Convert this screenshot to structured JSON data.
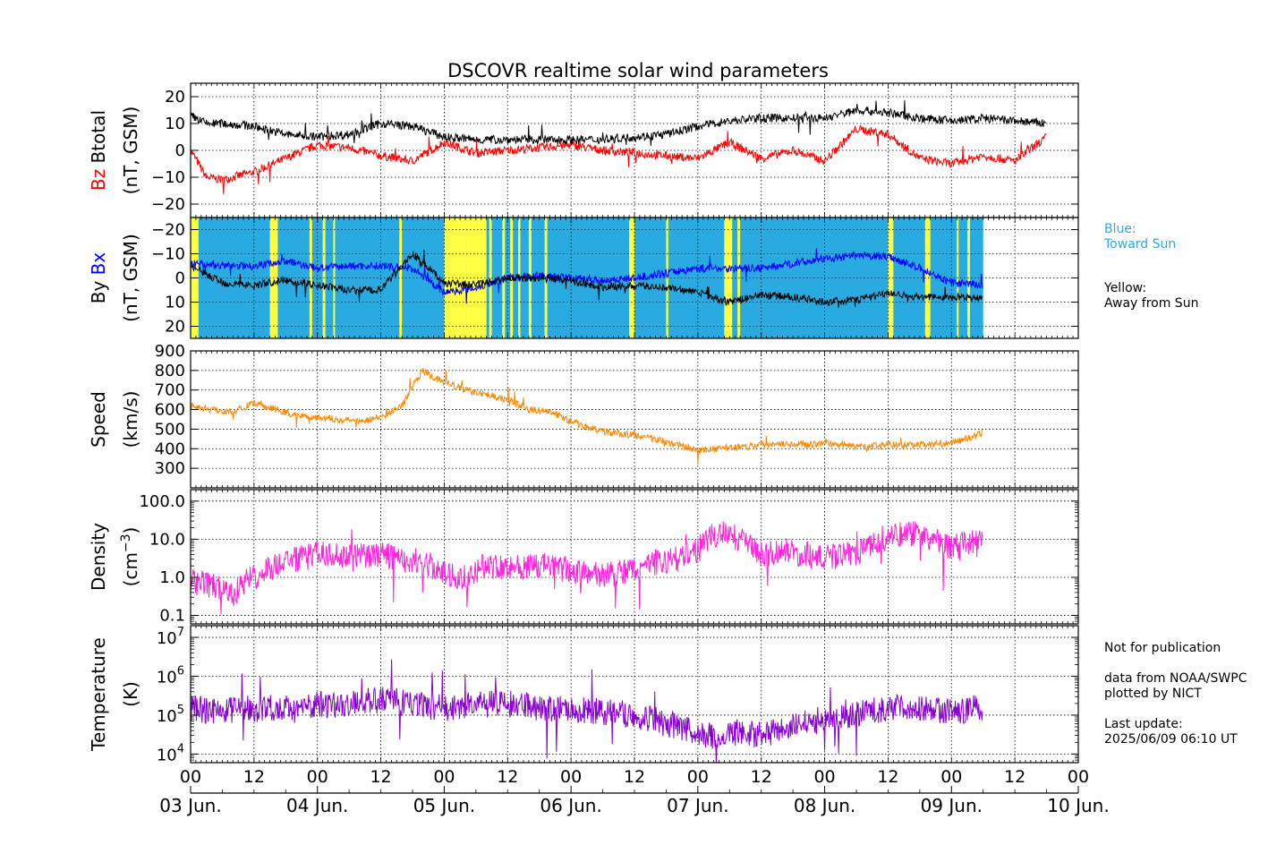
{
  "title": "DSCOVR realtime solar wind parameters",
  "legend_notes": {
    "blue_line1": "Blue:",
    "blue_line2": "Toward Sun",
    "yellow_line1": "Yellow:",
    "yellow_line2": "Away from Sun"
  },
  "footer_notes": {
    "publication": "Not for publication",
    "source1": "data from NOAA/SWPC",
    "source2": "plotted by NICT",
    "update_label": "Last update:",
    "update_time": "2025/06/09 06:10 UT"
  },
  "colors": {
    "bz": "#ff0000",
    "btotal": "#000000",
    "bx": "#0000ff",
    "by": "#000000",
    "toward_sun": "#29abe2",
    "away_from_sun": "#ffff44",
    "speed": "#ff8800",
    "density": "#ff22dd",
    "temperature": "#8800cc"
  },
  "chart_data": [
    {
      "type": "line",
      "panel": "magnetic-field-total",
      "ylabel_parts": [
        {
          "text": "Bz",
          "color": "#ff0000"
        },
        {
          "text": "Btotal",
          "color": "#000000"
        }
      ],
      "ylabel_unit": "(nT, GSM)",
      "ylim": [
        -25,
        25
      ],
      "yticks": [
        -20,
        -10,
        0,
        10,
        20
      ],
      "ytick_labels": [
        "−20",
        "−10",
        "0",
        "10",
        "20"
      ],
      "series": [
        {
          "name": "Bz",
          "color": "#ff0000",
          "x": [
            0,
            3,
            6,
            12,
            18,
            24,
            30,
            36,
            42,
            48,
            54,
            60,
            66,
            72,
            78,
            84,
            90,
            96,
            102,
            108,
            114,
            120,
            126,
            132,
            138,
            144,
            150,
            156,
            162
          ],
          "y": [
            0,
            -10,
            -11,
            -8,
            -3,
            2,
            1,
            -2,
            -4,
            3,
            -1,
            0,
            1,
            2,
            0,
            -1,
            -2,
            -3,
            3,
            -3,
            0,
            -4,
            8,
            6,
            -3,
            -5,
            -2,
            -4,
            5
          ]
        },
        {
          "name": "Btotal",
          "color": "#000000",
          "x": [
            0,
            3,
            6,
            12,
            18,
            24,
            30,
            36,
            42,
            48,
            54,
            60,
            66,
            72,
            78,
            84,
            90,
            96,
            102,
            108,
            114,
            120,
            126,
            132,
            138,
            144,
            150,
            156,
            162
          ],
          "y": [
            13,
            10,
            10,
            9,
            6,
            5,
            6,
            10,
            9,
            5,
            4,
            4,
            4,
            4,
            4,
            5,
            6,
            9,
            11,
            12,
            12,
            12,
            15,
            14,
            12,
            11,
            12,
            11,
            10
          ]
        }
      ]
    },
    {
      "type": "line",
      "panel": "magnetic-field-components",
      "ylabel_parts": [
        {
          "text": "By",
          "color": "#000000"
        },
        {
          "text": "Bx",
          "color": "#0000ff"
        }
      ],
      "ylabel_unit": "(nT, GSM)",
      "ylim": [
        -25,
        25
      ],
      "yticks": [
        -20,
        -10,
        0,
        10,
        20
      ],
      "ytick_labels": [
        "20",
        "10",
        "0",
        "−10",
        "−20"
      ],
      "sector_polarity": {
        "toward_color": "#29abe2",
        "away_color": "#ffff44",
        "data_end_hour": 150
      },
      "series": [
        {
          "name": "Bx",
          "color": "#0000ff",
          "x": [
            0,
            6,
            12,
            18,
            24,
            30,
            36,
            42,
            48,
            54,
            60,
            66,
            72,
            78,
            84,
            90,
            96,
            102,
            108,
            114,
            120,
            126,
            132,
            138,
            144,
            150
          ],
          "y": [
            6,
            5,
            5,
            7,
            4,
            5,
            5,
            4,
            -6,
            -4,
            0,
            1,
            0,
            -1,
            0,
            2,
            4,
            4,
            4,
            6,
            8,
            9,
            9,
            4,
            -2,
            -3
          ]
        },
        {
          "name": "By",
          "color": "#000000",
          "x": [
            0,
            6,
            12,
            18,
            24,
            30,
            36,
            42,
            48,
            54,
            60,
            66,
            72,
            78,
            84,
            90,
            96,
            102,
            108,
            114,
            120,
            126,
            132,
            138,
            144,
            150
          ],
          "y": [
            5,
            -2,
            -3,
            -1,
            -3,
            -5,
            -5,
            10,
            -2,
            -3,
            0,
            0,
            -1,
            -4,
            -3,
            -4,
            -6,
            -10,
            -7,
            -8,
            -10,
            -9,
            -6,
            -8,
            -8,
            -8
          ]
        }
      ]
    },
    {
      "type": "line",
      "panel": "speed",
      "ylabel": "Speed",
      "ylabel_unit": "(km/s)",
      "ylim": [
        200,
        900
      ],
      "yticks": [
        300,
        400,
        500,
        600,
        700,
        800,
        900
      ],
      "ytick_labels": [
        "300",
        "400",
        "500",
        "600",
        "700",
        "800",
        "900"
      ],
      "series": [
        {
          "name": "Speed",
          "color": "#ff8800",
          "x": [
            0,
            4,
            8,
            12,
            16,
            20,
            24,
            28,
            32,
            36,
            40,
            42,
            44,
            46,
            48,
            52,
            56,
            60,
            64,
            68,
            72,
            76,
            80,
            84,
            88,
            92,
            96,
            100,
            104,
            108,
            112,
            116,
            120,
            124,
            128,
            132,
            136,
            140,
            144,
            148,
            150
          ],
          "y": [
            620,
            600,
            590,
            630,
            600,
            570,
            560,
            550,
            540,
            560,
            620,
            720,
            800,
            760,
            740,
            700,
            680,
            650,
            600,
            590,
            540,
            500,
            480,
            470,
            450,
            420,
            390,
            400,
            410,
            420,
            430,
            420,
            430,
            420,
            410,
            420,
            420,
            420,
            430,
            460,
            480
          ]
        }
      ]
    },
    {
      "type": "line",
      "panel": "density",
      "ylabel": "Density",
      "ylabel_unit": "(cm",
      "ylabel_sup": "−3",
      "ylabel_unit_end": ")",
      "yscale": "log",
      "ylim": [
        0.06,
        200
      ],
      "yticks": [
        0.1,
        1.0,
        10.0,
        100.0
      ],
      "ytick_labels": [
        "0.1",
        "1.0",
        "10.0",
        "100.0"
      ],
      "series": [
        {
          "name": "Density",
          "color": "#ff22dd",
          "x": [
            0,
            4,
            8,
            12,
            16,
            20,
            24,
            28,
            32,
            36,
            40,
            44,
            48,
            52,
            56,
            60,
            64,
            68,
            72,
            76,
            80,
            84,
            88,
            92,
            96,
            100,
            104,
            108,
            112,
            116,
            120,
            124,
            128,
            132,
            136,
            140,
            144,
            148,
            150
          ],
          "y": [
            0.8,
            0.6,
            0.3,
            1.0,
            2.0,
            3.0,
            4.0,
            4.0,
            3.5,
            4.0,
            3.0,
            2.5,
            1.2,
            1.0,
            2.0,
            2.0,
            1.8,
            2.0,
            1.5,
            1.2,
            1.2,
            1.5,
            2.5,
            3.0,
            5.0,
            15,
            10,
            4,
            5,
            4,
            3,
            4,
            5,
            12,
            15,
            10,
            6,
            8,
            7
          ]
        }
      ]
    },
    {
      "type": "line",
      "panel": "temperature",
      "ylabel": "Temperature",
      "ylabel_unit": "(K)",
      "yscale": "log",
      "ylim": [
        6000,
        20000000
      ],
      "yticks": [
        10000,
        100000,
        1000000,
        10000000
      ],
      "ytick_labels": [
        {
          "base": "10",
          "exp": "4"
        },
        {
          "base": "10",
          "exp": "5"
        },
        {
          "base": "10",
          "exp": "6"
        },
        {
          "base": "10",
          "exp": "7"
        }
      ],
      "series": [
        {
          "name": "Temperature",
          "color": "#8800cc",
          "x": [
            0,
            6,
            12,
            18,
            24,
            30,
            36,
            42,
            48,
            54,
            60,
            66,
            72,
            78,
            84,
            90,
            96,
            100,
            104,
            108,
            112,
            116,
            120,
            124,
            128,
            132,
            136,
            140,
            144,
            148,
            150
          ],
          "y": [
            150000,
            120000,
            150000,
            150000,
            180000,
            200000,
            250000,
            200000,
            150000,
            180000,
            200000,
            150000,
            150000,
            120000,
            100000,
            60000,
            35000,
            25000,
            40000,
            30000,
            40000,
            60000,
            80000,
            90000,
            120000,
            150000,
            160000,
            150000,
            120000,
            150000,
            160000
          ]
        }
      ]
    }
  ],
  "x_axis": {
    "range_hours": [
      0,
      168
    ],
    "hour_ticks": [
      0,
      12,
      24,
      36,
      48,
      60,
      72,
      84,
      96,
      108,
      120,
      132,
      144,
      156,
      168
    ],
    "hour_labels": [
      "00",
      "12",
      "00",
      "12",
      "00",
      "12",
      "00",
      "12",
      "00",
      "12",
      "00",
      "12",
      "00",
      "12",
      "00"
    ],
    "date_ticks": [
      0,
      24,
      48,
      72,
      96,
      120,
      144,
      168
    ],
    "date_labels": [
      "03 Jun.",
      "04 Jun.",
      "05 Jun.",
      "06 Jun.",
      "07 Jun.",
      "08 Jun.",
      "09 Jun.",
      "10 Jun."
    ]
  }
}
